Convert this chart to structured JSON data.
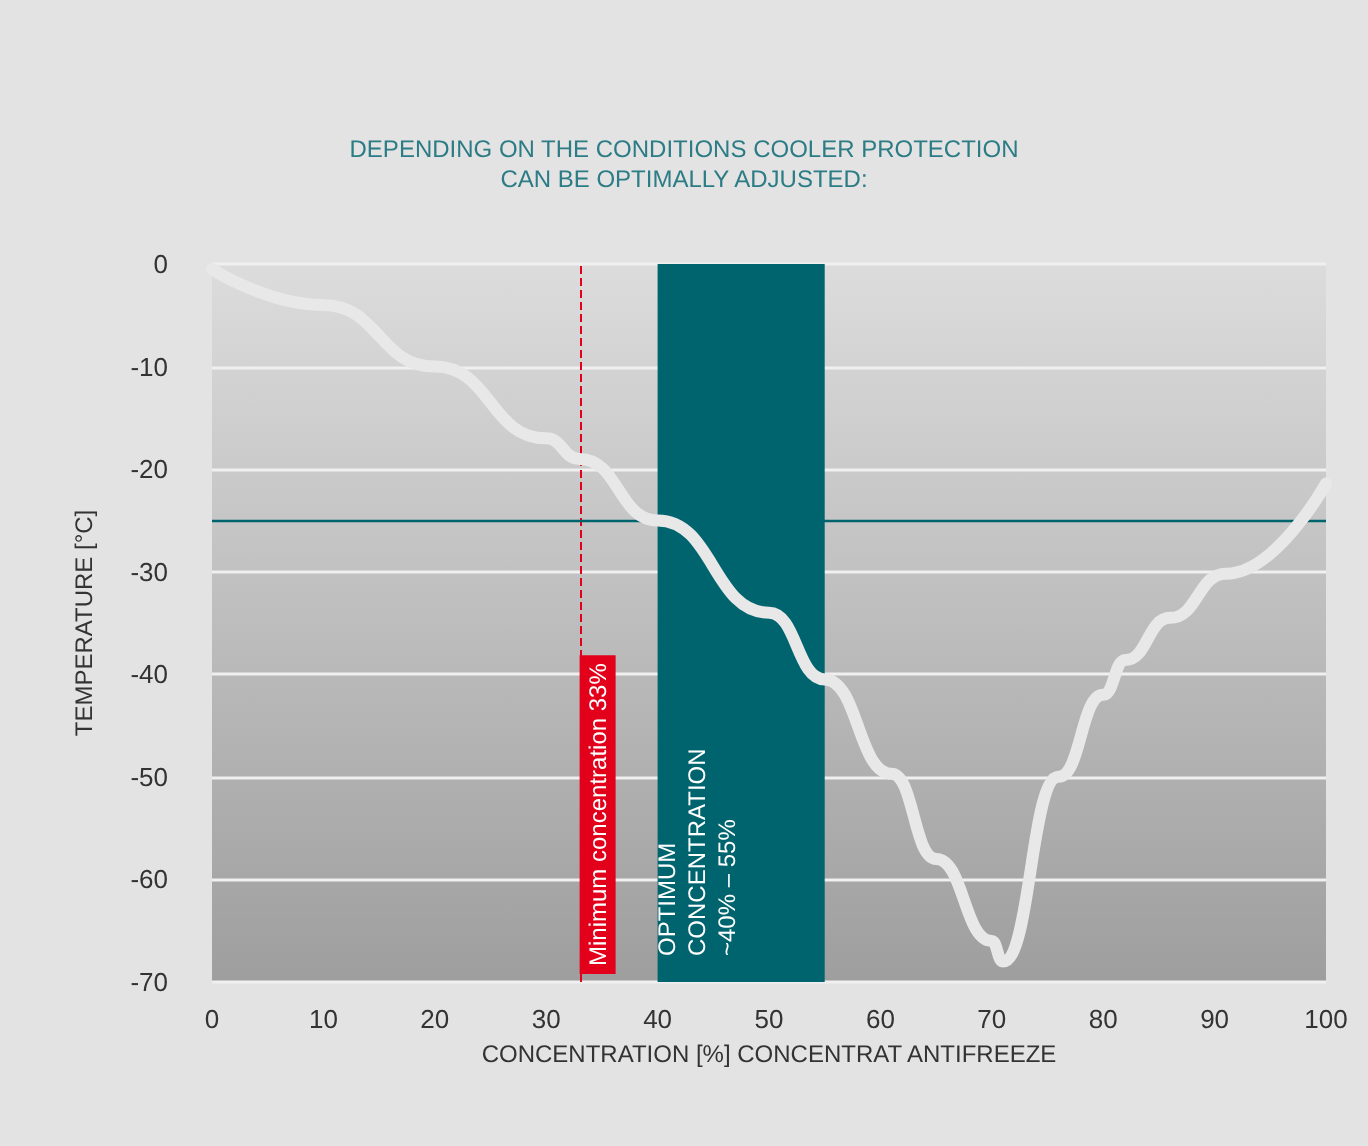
{
  "chart_data": {
    "type": "line",
    "title": "DEPENDING ON THE CONDITIONS COOLER PROTECTION\nCAN BE OPTIMALLY ADJUSTED:",
    "xlabel": "CONCENTRATION [%] CONCENTRAT ANTIFREEZE",
    "ylabel": "TEMPERATURE [°C]",
    "x": [
      0,
      10,
      20,
      30,
      33,
      40,
      50,
      55,
      61,
      65,
      70,
      71,
      76,
      80,
      82,
      86,
      91,
      100
    ],
    "series": [
      {
        "color": "#e8e8e8",
        "values": [
          -0.5,
          -4,
          -10,
          -17,
          -19,
          -25,
          -34,
          -40.5,
          -49.7,
          -58,
          -66,
          -68,
          -50,
          -42,
          -38.6,
          -34.5,
          -30.2,
          -21.4
        ]
      }
    ],
    "xlim": [
      0,
      100
    ],
    "xticks": [
      0,
      10,
      20,
      30,
      40,
      50,
      60,
      70,
      80,
      90,
      100
    ],
    "ylim": [
      -70,
      0
    ],
    "yticks": [
      -70,
      -60,
      -50,
      -40,
      -30,
      -20,
      -10,
      0
    ],
    "bands": [
      {
        "axis": "x",
        "from": 40,
        "to": 55,
        "label": "OPTIMUM\nCONCENTRATION\n~40% – 55%",
        "color": "#00646f"
      }
    ],
    "ref_lines": [
      {
        "axis": "x",
        "value": 33,
        "label": "Minimum concentration 33%",
        "color": "#e2001a",
        "line_style": "dashed"
      },
      {
        "axis": "y",
        "value": -25,
        "color": "#00646f",
        "line_style": "solid"
      }
    ],
    "grid": "y",
    "marker": "none",
    "line_style": "solid"
  }
}
